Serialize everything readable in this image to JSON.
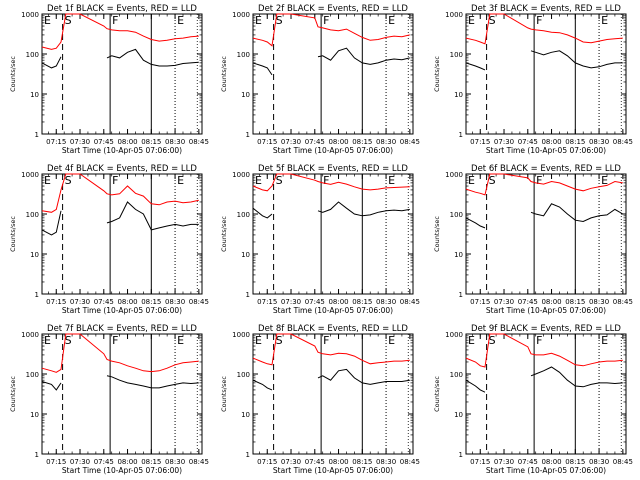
{
  "panel_common": {
    "ylabel": "Counts/sec",
    "xlabel": "Start Time (10-Apr-05 07:06:00)",
    "x_ticks": [
      "07:15",
      "07:30",
      "07:45",
      "08:00",
      "08:15",
      "08:30",
      "08:45"
    ],
    "y_ticks": [
      "1",
      "10",
      "100",
      "1000"
    ],
    "markers": [
      {
        "label": "E",
        "time": "07:06"
      },
      {
        "label": "S",
        "time": "07:19"
      },
      {
        "label": "F",
        "time": "07:49"
      },
      {
        "label": "E",
        "time": "08:30"
      }
    ]
  },
  "colors": {
    "events": "#000000",
    "lld": "#ff0000"
  },
  "chart_data": [
    {
      "type": "line",
      "title": "Det 1f BLACK = Events, RED = LLD",
      "x": [
        "07:06",
        "07:12",
        "07:15",
        "07:18",
        "07:21",
        "07:30",
        "07:45",
        "07:47",
        "07:50",
        "07:55",
        "08:00",
        "08:05",
        "08:10",
        "08:15",
        "08:20",
        "08:25",
        "08:30",
        "08:35",
        "08:40",
        "08:45"
      ],
      "series": [
        {
          "name": "Events",
          "values": [
            60,
            45,
            50,
            85,
            null,
            null,
            null,
            80,
            90,
            80,
            110,
            130,
            70,
            55,
            50,
            50,
            52,
            58,
            60,
            62
          ]
        },
        {
          "name": "LLD",
          "values": [
            150,
            130,
            140,
            200,
            1000,
            1000,
            500,
            430,
            400,
            380,
            380,
            350,
            280,
            230,
            210,
            220,
            240,
            250,
            270,
            280
          ]
        }
      ],
      "ylim": [
        1,
        1000
      ],
      "yscale": "log"
    },
    {
      "type": "line",
      "title": "Det 2f BLACK = Events, RED = LLD",
      "x": [
        "07:06",
        "07:12",
        "07:15",
        "07:18",
        "07:21",
        "07:30",
        "07:45",
        "07:47",
        "07:50",
        "07:55",
        "08:00",
        "08:05",
        "08:10",
        "08:15",
        "08:20",
        "08:25",
        "08:30",
        "08:35",
        "08:40",
        "08:45"
      ],
      "series": [
        {
          "name": "Events",
          "values": [
            60,
            50,
            45,
            30,
            null,
            null,
            null,
            85,
            90,
            70,
            120,
            140,
            80,
            60,
            55,
            60,
            70,
            75,
            72,
            80
          ]
        },
        {
          "name": "LLD",
          "values": [
            250,
            220,
            200,
            160,
            1000,
            1000,
            800,
            480,
            450,
            400,
            380,
            420,
            330,
            260,
            220,
            230,
            260,
            280,
            270,
            300
          ]
        }
      ],
      "ylim": [
        1,
        1000
      ],
      "yscale": "log"
    },
    {
      "type": "line",
      "title": "Det 3f BLACK = Events, RED = LLD",
      "x": [
        "07:06",
        "07:12",
        "07:15",
        "07:18",
        "07:21",
        "07:30",
        "07:45",
        "07:47",
        "07:50",
        "07:55",
        "08:00",
        "08:05",
        "08:10",
        "08:15",
        "08:20",
        "08:25",
        "08:30",
        "08:35",
        "08:40",
        "08:45"
      ],
      "series": [
        {
          "name": "Events",
          "values": [
            60,
            50,
            45,
            40,
            null,
            null,
            null,
            120,
            110,
            95,
            110,
            120,
            90,
            60,
            50,
            45,
            48,
            55,
            60,
            60
          ]
        },
        {
          "name": "LLD",
          "values": [
            250,
            220,
            200,
            180,
            1000,
            1000,
            450,
            420,
            400,
            380,
            350,
            340,
            300,
            250,
            200,
            190,
            210,
            230,
            240,
            250
          ]
        }
      ],
      "ylim": [
        1,
        1000
      ],
      "yscale": "log"
    },
    {
      "type": "line",
      "title": "Det 4f BLACK = Events, RED = LLD",
      "x": [
        "07:06",
        "07:12",
        "07:15",
        "07:18",
        "07:21",
        "07:30",
        "07:45",
        "07:47",
        "07:50",
        "07:55",
        "08:00",
        "08:05",
        "08:10",
        "08:15",
        "08:20",
        "08:25",
        "08:30",
        "08:35",
        "08:40",
        "08:45"
      ],
      "series": [
        {
          "name": "Events",
          "values": [
            40,
            30,
            35,
            120,
            null,
            null,
            null,
            60,
            65,
            80,
            200,
            130,
            100,
            40,
            45,
            50,
            55,
            50,
            55,
            55
          ]
        },
        {
          "name": "LLD",
          "values": [
            120,
            110,
            130,
            400,
            1000,
            1000,
            380,
            320,
            300,
            320,
            500,
            330,
            280,
            180,
            170,
            200,
            210,
            190,
            200,
            220
          ]
        }
      ],
      "ylim": [
        1,
        1000
      ],
      "yscale": "log"
    },
    {
      "type": "line",
      "title": "Det 5f BLACK = Events, RED = LLD",
      "x": [
        "07:06",
        "07:12",
        "07:15",
        "07:18",
        "07:21",
        "07:30",
        "07:45",
        "07:47",
        "07:50",
        "07:55",
        "08:00",
        "08:05",
        "08:10",
        "08:15",
        "08:20",
        "08:25",
        "08:30",
        "08:35",
        "08:40",
        "08:45"
      ],
      "series": [
        {
          "name": "Events",
          "values": [
            140,
            90,
            80,
            100,
            null,
            null,
            null,
            120,
            110,
            130,
            200,
            140,
            100,
            90,
            95,
            110,
            120,
            125,
            120,
            130
          ]
        },
        {
          "name": "LLD",
          "values": [
            500,
            400,
            380,
            500,
            1000,
            1000,
            700,
            650,
            600,
            550,
            620,
            560,
            480,
            420,
            400,
            420,
            450,
            460,
            470,
            480
          ]
        }
      ],
      "ylim": [
        1,
        1000
      ],
      "yscale": "log"
    },
    {
      "type": "line",
      "title": "Det 6f BLACK = Events, RED = LLD",
      "x": [
        "07:06",
        "07:12",
        "07:15",
        "07:18",
        "07:21",
        "07:30",
        "07:45",
        "07:47",
        "07:50",
        "07:55",
        "08:00",
        "08:05",
        "08:10",
        "08:15",
        "08:20",
        "08:25",
        "08:30",
        "08:35",
        "08:40",
        "08:45"
      ],
      "series": [
        {
          "name": "Events",
          "values": [
            80,
            60,
            50,
            45,
            null,
            null,
            null,
            110,
            100,
            90,
            180,
            150,
            100,
            70,
            65,
            80,
            90,
            95,
            130,
            100
          ]
        },
        {
          "name": "LLD",
          "values": [
            420,
            350,
            330,
            300,
            1000,
            1000,
            800,
            650,
            600,
            560,
            650,
            600,
            500,
            420,
            380,
            440,
            480,
            520,
            650,
            600
          ]
        }
      ],
      "ylim": [
        1,
        1000
      ],
      "yscale": "log"
    },
    {
      "type": "line",
      "title": "Det 7f BLACK = Events, RED = LLD",
      "x": [
        "07:06",
        "07:12",
        "07:15",
        "07:18",
        "07:21",
        "07:30",
        "07:45",
        "07:47",
        "07:50",
        "07:55",
        "08:00",
        "08:05",
        "08:10",
        "08:15",
        "08:20",
        "08:25",
        "08:30",
        "08:35",
        "08:40",
        "08:45"
      ],
      "series": [
        {
          "name": "Events",
          "values": [
            65,
            55,
            40,
            60,
            null,
            null,
            null,
            90,
            85,
            70,
            60,
            55,
            50,
            45,
            45,
            50,
            55,
            60,
            58,
            60
          ]
        },
        {
          "name": "LLD",
          "values": [
            140,
            120,
            110,
            130,
            1000,
            1000,
            320,
            230,
            210,
            190,
            160,
            140,
            120,
            115,
            120,
            140,
            170,
            190,
            200,
            210
          ]
        }
      ],
      "ylim": [
        1,
        1000
      ],
      "yscale": "log"
    },
    {
      "type": "line",
      "title": "Det 8f BLACK = Events, RED = LLD",
      "x": [
        "07:06",
        "07:12",
        "07:15",
        "07:18",
        "07:21",
        "07:30",
        "07:45",
        "07:47",
        "07:50",
        "07:55",
        "08:00",
        "08:05",
        "08:10",
        "08:15",
        "08:20",
        "08:25",
        "08:30",
        "08:35",
        "08:40",
        "08:45"
      ],
      "series": [
        {
          "name": "Events",
          "values": [
            70,
            55,
            45,
            40,
            null,
            null,
            null,
            80,
            90,
            70,
            120,
            130,
            80,
            60,
            55,
            60,
            65,
            65,
            65,
            70
          ]
        },
        {
          "name": "LLD",
          "values": [
            250,
            200,
            180,
            170,
            1000,
            1000,
            500,
            350,
            320,
            300,
            330,
            320,
            280,
            220,
            180,
            190,
            200,
            210,
            210,
            220
          ]
        }
      ],
      "ylim": [
        1,
        1000
      ],
      "yscale": "log"
    },
    {
      "type": "line",
      "title": "Det 9f BLACK = Events, RED = LLD",
      "x": [
        "07:06",
        "07:12",
        "07:15",
        "07:18",
        "07:21",
        "07:30",
        "07:45",
        "07:47",
        "07:50",
        "07:55",
        "08:00",
        "08:05",
        "08:10",
        "08:15",
        "08:20",
        "08:25",
        "08:30",
        "08:35",
        "08:40",
        "08:45"
      ],
      "series": [
        {
          "name": "Events",
          "values": [
            70,
            50,
            40,
            35,
            null,
            null,
            null,
            90,
            100,
            120,
            150,
            110,
            70,
            50,
            48,
            55,
            60,
            60,
            58,
            60
          ]
        },
        {
          "name": "LLD",
          "values": [
            250,
            200,
            160,
            150,
            1000,
            1000,
            480,
            320,
            300,
            300,
            330,
            280,
            220,
            170,
            160,
            180,
            200,
            210,
            210,
            220
          ]
        }
      ],
      "ylim": [
        1,
        1000
      ],
      "yscale": "log"
    }
  ]
}
